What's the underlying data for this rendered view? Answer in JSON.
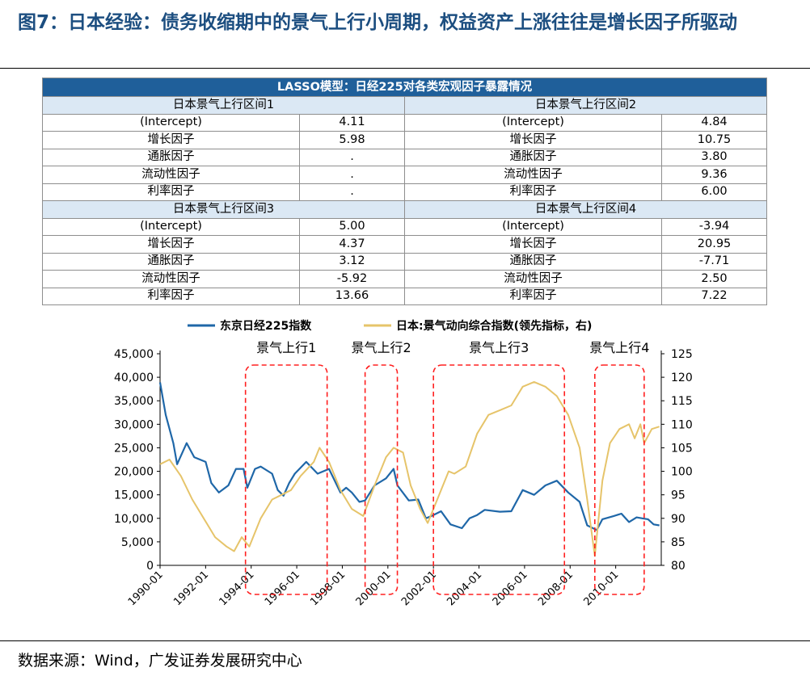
{
  "figure_title": "图7：日本经验：债务收缩期中的景气上行小周期，权益资产上涨往往是增长因子所驱动",
  "table": {
    "title": "LASSO模型：日经225对各类宏观因子暴露情况",
    "sections": [
      {
        "left": {
          "label": "日本景气上行区间1",
          "rows": [
            [
              "(Intercept)",
              "4.11"
            ],
            [
              "增长因子",
              "5.98"
            ],
            [
              "通胀因子",
              "."
            ],
            [
              "流动性因子",
              "."
            ],
            [
              "利率因子",
              "."
            ]
          ]
        },
        "right": {
          "label": "日本景气上行区间2",
          "rows": [
            [
              "(Intercept)",
              "4.84"
            ],
            [
              "增长因子",
              "10.75"
            ],
            [
              "通胀因子",
              "3.80"
            ],
            [
              "流动性因子",
              "9.36"
            ],
            [
              "利率因子",
              "6.00"
            ]
          ]
        }
      },
      {
        "left": {
          "label": "日本景气上行区间3",
          "rows": [
            [
              "(Intercept)",
              "5.00"
            ],
            [
              "增长因子",
              "4.37"
            ],
            [
              "通胀因子",
              "3.12"
            ],
            [
              "流动性因子",
              "-5.92"
            ],
            [
              "利率因子",
              "13.66"
            ]
          ]
        },
        "right": {
          "label": "日本景气上行区间4",
          "rows": [
            [
              "(Intercept)",
              "-3.94"
            ],
            [
              "增长因子",
              "20.95"
            ],
            [
              "通胀因子",
              "-7.71"
            ],
            [
              "流动性因子",
              "2.50"
            ],
            [
              "利率因子",
              "7.22"
            ]
          ]
        }
      }
    ]
  },
  "chart_data": {
    "type": "line",
    "grid": false,
    "legend_position": "top",
    "x_tick_labels": [
      "1990-01",
      "1992-01",
      "1994-01",
      "1996-01",
      "1998-01",
      "2000-01",
      "2002-01",
      "2004-01",
      "2006-01",
      "2008-01",
      "2010-01"
    ],
    "x_range": [
      "1990-01",
      "2011-12"
    ],
    "y_left": {
      "min": 0,
      "max": 45000,
      "ticks": [
        "0",
        "5,000",
        "10,000",
        "15,000",
        "20,000",
        "25,000",
        "30,000",
        "35,000",
        "40,000",
        "45,000"
      ]
    },
    "y_right": {
      "min": 80,
      "max": 125,
      "ticks": [
        "80",
        "85",
        "90",
        "95",
        "100",
        "105",
        "110",
        "115",
        "120",
        "125"
      ]
    },
    "series": [
      {
        "name": "东京日经225指数",
        "axis": "left",
        "color": "#1f67a8",
        "points": [
          [
            "1990-01",
            38900
          ],
          [
            "1990-04",
            32000
          ],
          [
            "1990-08",
            26000
          ],
          [
            "1990-10",
            21500
          ],
          [
            "1991-03",
            26000
          ],
          [
            "1991-07",
            23000
          ],
          [
            "1992-01",
            22000
          ],
          [
            "1992-04",
            17500
          ],
          [
            "1992-08",
            15500
          ],
          [
            "1993-01",
            17000
          ],
          [
            "1993-05",
            20500
          ],
          [
            "1993-09",
            20500
          ],
          [
            "1993-11",
            16500
          ],
          [
            "1994-03",
            20500
          ],
          [
            "1994-06",
            21000
          ],
          [
            "1994-12",
            19500
          ],
          [
            "1995-03",
            16000
          ],
          [
            "1995-06",
            14800
          ],
          [
            "1995-09",
            17500
          ],
          [
            "1995-12",
            19500
          ],
          [
            "1996-06",
            22000
          ],
          [
            "1996-12",
            19500
          ],
          [
            "1997-06",
            20500
          ],
          [
            "1997-12",
            15500
          ],
          [
            "1998-03",
            16500
          ],
          [
            "1998-06",
            15500
          ],
          [
            "1998-10",
            13500
          ],
          [
            "1999-01",
            13800
          ],
          [
            "1999-06",
            17000
          ],
          [
            "1999-12",
            18500
          ],
          [
            "2000-04",
            20500
          ],
          [
            "2000-06",
            17000
          ],
          [
            "2000-12",
            13800
          ],
          [
            "2001-05",
            14000
          ],
          [
            "2001-09",
            10000
          ],
          [
            "2001-12",
            10500
          ],
          [
            "2002-05",
            11500
          ],
          [
            "2002-10",
            8700
          ],
          [
            "2003-04",
            7900
          ],
          [
            "2003-08",
            10000
          ],
          [
            "2003-12",
            10700
          ],
          [
            "2004-04",
            11800
          ],
          [
            "2004-12",
            11400
          ],
          [
            "2005-06",
            11500
          ],
          [
            "2005-12",
            16000
          ],
          [
            "2006-06",
            15000
          ],
          [
            "2006-12",
            17000
          ],
          [
            "2007-06",
            18000
          ],
          [
            "2007-12",
            15500
          ],
          [
            "2008-06",
            13500
          ],
          [
            "2008-10",
            8500
          ],
          [
            "2009-03",
            7500
          ],
          [
            "2009-06",
            9800
          ],
          [
            "2009-12",
            10500
          ],
          [
            "2010-04",
            11000
          ],
          [
            "2010-08",
            9200
          ],
          [
            "2010-12",
            10200
          ],
          [
            "2011-03",
            10000
          ],
          [
            "2011-06",
            9800
          ],
          [
            "2011-09",
            8700
          ],
          [
            "2011-12",
            8500
          ]
        ]
      },
      {
        "name": "日本:景气动向综合指数(领先指标，右)",
        "axis": "right",
        "color": "#e6c46a",
        "points": [
          [
            "1990-01",
            101.5
          ],
          [
            "1990-06",
            102.5
          ],
          [
            "1990-12",
            99
          ],
          [
            "1991-06",
            94
          ],
          [
            "1991-12",
            90
          ],
          [
            "1992-06",
            86
          ],
          [
            "1992-12",
            84
          ],
          [
            "1993-04",
            83
          ],
          [
            "1993-08",
            86
          ],
          [
            "1993-12",
            84
          ],
          [
            "1994-06",
            90
          ],
          [
            "1994-12",
            94
          ],
          [
            "1995-05",
            95
          ],
          [
            "1995-10",
            96
          ],
          [
            "1996-03",
            99
          ],
          [
            "1996-10",
            102
          ],
          [
            "1997-01",
            105
          ],
          [
            "1997-06",
            102
          ],
          [
            "1997-12",
            96
          ],
          [
            "1998-06",
            92
          ],
          [
            "1998-12",
            90.5
          ],
          [
            "1999-06",
            97
          ],
          [
            "1999-12",
            103
          ],
          [
            "2000-04",
            105
          ],
          [
            "2000-09",
            104
          ],
          [
            "2001-01",
            97
          ],
          [
            "2001-06",
            92
          ],
          [
            "2001-10",
            89
          ],
          [
            "2002-03",
            94
          ],
          [
            "2002-09",
            100
          ],
          [
            "2002-12",
            99.5
          ],
          [
            "2003-06",
            101
          ],
          [
            "2003-12",
            108
          ],
          [
            "2004-06",
            112
          ],
          [
            "2004-12",
            113
          ],
          [
            "2005-06",
            114
          ],
          [
            "2005-12",
            118
          ],
          [
            "2006-06",
            119
          ],
          [
            "2006-12",
            118
          ],
          [
            "2007-06",
            116
          ],
          [
            "2007-12",
            112
          ],
          [
            "2008-06",
            105
          ],
          [
            "2008-10",
            94
          ],
          [
            "2009-02",
            82
          ],
          [
            "2009-06",
            98
          ],
          [
            "2009-10",
            106
          ],
          [
            "2010-03",
            109
          ],
          [
            "2010-08",
            110
          ],
          [
            "2010-11",
            107
          ],
          [
            "2011-02",
            110
          ],
          [
            "2011-04",
            106
          ],
          [
            "2011-08",
            109
          ],
          [
            "2011-12",
            109.5
          ]
        ]
      }
    ],
    "annotations": [
      {
        "label": "景气上行1",
        "start": "1993-10",
        "end": "1997-05"
      },
      {
        "label": "景气上行2",
        "start": "1999-01",
        "end": "2000-06"
      },
      {
        "label": "景气上行3",
        "start": "2002-01",
        "end": "2007-10"
      },
      {
        "label": "景气上行4",
        "start": "2009-02",
        "end": "2011-04"
      }
    ]
  },
  "source": "数据来源：Wind，广发证券发展研究中心"
}
